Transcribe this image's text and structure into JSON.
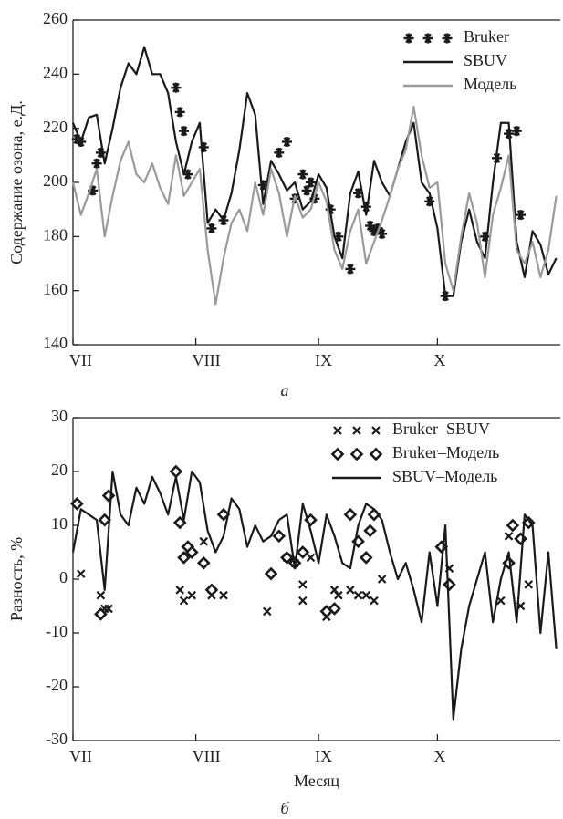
{
  "chart_data": [
    {
      "type": "line",
      "caption": "а",
      "y_label": "Содержание озона, е.Д.",
      "xlim": [
        0,
        123
      ],
      "xticks": [
        {
          "value": 0,
          "label": "VII"
        },
        {
          "value": 31,
          "label": "VIII"
        },
        {
          "value": 62,
          "label": "IX"
        },
        {
          "value": 92,
          "label": "X"
        }
      ],
      "ylim": [
        140,
        260
      ],
      "yticks": [
        140,
        160,
        180,
        200,
        220,
        240,
        260
      ],
      "series": [
        {
          "name": "Bruker",
          "color": "#1a1a1a",
          "mode": "markers",
          "marker": "asterisk",
          "x": [
            1,
            2,
            5,
            6,
            7,
            26,
            27,
            28,
            29,
            33,
            35,
            38,
            48,
            52,
            54,
            56,
            58,
            59,
            60,
            61,
            65,
            67,
            70,
            72,
            74,
            75,
            76,
            77,
            78,
            90,
            94,
            104,
            107,
            110,
            112,
            113
          ],
          "values": [
            216,
            215,
            197,
            207,
            211,
            235,
            226,
            219,
            203,
            213,
            183,
            186,
            199,
            211,
            215,
            194,
            203,
            197,
            200,
            194,
            190,
            180,
            168,
            196,
            191,
            184,
            182,
            183,
            181,
            193,
            158,
            180,
            209,
            218,
            219,
            188
          ]
        },
        {
          "name": "SBUV",
          "color": "#1a1a1a",
          "mode": "lines",
          "x": [
            0,
            2,
            4,
            6,
            8,
            10,
            12,
            14,
            16,
            18,
            20,
            22,
            24,
            26,
            28,
            30,
            32,
            34,
            36,
            38,
            40,
            42,
            44,
            46,
            48,
            50,
            52,
            54,
            56,
            58,
            60,
            62,
            64,
            66,
            68,
            70,
            72,
            74,
            76,
            78,
            80,
            82,
            84,
            86,
            88,
            90,
            92,
            94,
            96,
            98,
            100,
            102,
            104,
            106,
            108,
            110,
            112,
            114,
            116,
            118,
            120,
            122
          ],
          "values": [
            222,
            215,
            224,
            225,
            207,
            220,
            235,
            244,
            240,
            250,
            240,
            240,
            233,
            215,
            203,
            215,
            222,
            185,
            190,
            186,
            196,
            212,
            233,
            225,
            192,
            208,
            203,
            197,
            200,
            190,
            193,
            203,
            198,
            180,
            172,
            196,
            204,
            188,
            208,
            200,
            195,
            205,
            215,
            222,
            200,
            196,
            183,
            158,
            158,
            178,
            190,
            178,
            172,
            200,
            222,
            222,
            178,
            165,
            182,
            177,
            166,
            172
          ]
        },
        {
          "name": "Модель",
          "color": "#9a9a9a",
          "mode": "lines",
          "x": [
            0,
            2,
            4,
            6,
            8,
            10,
            12,
            14,
            16,
            18,
            20,
            22,
            24,
            26,
            28,
            30,
            32,
            34,
            36,
            38,
            40,
            42,
            44,
            46,
            48,
            50,
            52,
            54,
            56,
            58,
            60,
            62,
            64,
            66,
            68,
            70,
            72,
            74,
            76,
            78,
            80,
            82,
            84,
            86,
            88,
            90,
            92,
            94,
            96,
            98,
            100,
            102,
            104,
            106,
            108,
            110,
            112,
            114,
            116,
            118,
            120,
            122
          ],
          "values": [
            200,
            188,
            196,
            205,
            180,
            195,
            208,
            215,
            203,
            200,
            207,
            198,
            192,
            210,
            195,
            200,
            205,
            175,
            155,
            172,
            185,
            190,
            182,
            200,
            188,
            205,
            196,
            180,
            195,
            187,
            190,
            200,
            193,
            175,
            168,
            182,
            190,
            170,
            178,
            186,
            195,
            205,
            212,
            228,
            210,
            198,
            200,
            170,
            160,
            180,
            196,
            185,
            165,
            188,
            198,
            210,
            175,
            170,
            178,
            165,
            175,
            195
          ]
        }
      ]
    },
    {
      "type": "line",
      "caption": "б",
      "y_label": "Разность, %",
      "x_label": "Месяц",
      "xlim": [
        0,
        123
      ],
      "xticks": [
        {
          "value": 0,
          "label": "VII"
        },
        {
          "value": 31,
          "label": "VIII"
        },
        {
          "value": 62,
          "label": "IX"
        },
        {
          "value": 92,
          "label": "X"
        }
      ],
      "ylim": [
        -30,
        30
      ],
      "yticks": [
        -30,
        -20,
        -10,
        0,
        10,
        20,
        30
      ],
      "series": [
        {
          "name": "Bruker–SBUV",
          "color": "#1a1a1a",
          "mode": "markers",
          "marker": "x",
          "x": [
            2,
            7,
            8,
            9,
            27,
            28,
            30,
            33,
            35,
            38,
            49,
            54,
            56,
            58,
            58,
            60,
            64,
            66,
            67,
            70,
            72,
            74,
            76,
            78,
            95,
            108,
            110,
            113,
            115
          ],
          "values": [
            1,
            -3,
            -5.5,
            -5.5,
            -2,
            -4,
            -3,
            7,
            -3,
            -3,
            -6,
            4,
            3,
            -1,
            -4,
            4,
            -7,
            -2,
            -3,
            -2,
            -3,
            -3,
            -4,
            0,
            2,
            -4,
            8,
            -5,
            -1
          ]
        },
        {
          "name": "Bruker–Модель",
          "color": "#1a1a1a",
          "mode": "markers",
          "marker": "diamond",
          "x": [
            1,
            7,
            8,
            9,
            26,
            27,
            28,
            29,
            30,
            33,
            35,
            38,
            50,
            52,
            54,
            56,
            58,
            60,
            64,
            66,
            70,
            72,
            74,
            75,
            76,
            93,
            95,
            110,
            111,
            113,
            115
          ],
          "values": [
            14,
            -6.5,
            11,
            15.5,
            20,
            10.5,
            4,
            6,
            5,
            3,
            -2,
            12,
            1,
            8,
            4,
            3,
            5,
            11,
            -6,
            -5.5,
            12,
            7,
            4,
            9,
            12,
            6,
            -1,
            3,
            10,
            7.5,
            10.5
          ]
        },
        {
          "name": "SBUV–Модель",
          "color": "#1a1a1a",
          "mode": "lines",
          "x": [
            0,
            2,
            4,
            6,
            8,
            10,
            12,
            14,
            16,
            18,
            20,
            22,
            24,
            26,
            28,
            30,
            32,
            34,
            36,
            38,
            40,
            42,
            44,
            46,
            48,
            50,
            52,
            54,
            56,
            58,
            60,
            62,
            64,
            66,
            68,
            70,
            72,
            74,
            76,
            78,
            80,
            82,
            84,
            86,
            88,
            90,
            92,
            94,
            96,
            98,
            100,
            102,
            104,
            106,
            108,
            110,
            112,
            114,
            116,
            118,
            120,
            122
          ],
          "values": [
            5,
            13,
            12,
            11,
            -2,
            20,
            12,
            10,
            17,
            14,
            19,
            16,
            12,
            19,
            11,
            20,
            18,
            9,
            5,
            8,
            15,
            13,
            6,
            10,
            7,
            8,
            11,
            12,
            2,
            14,
            9,
            3,
            12,
            8,
            3,
            2,
            10,
            14,
            13,
            11,
            5,
            0,
            3,
            -2,
            -8,
            5,
            -5,
            10,
            -26,
            -13,
            -5,
            0,
            5,
            -8,
            0,
            5,
            -8,
            12,
            10,
            -10,
            5,
            -13
          ]
        }
      ]
    }
  ]
}
